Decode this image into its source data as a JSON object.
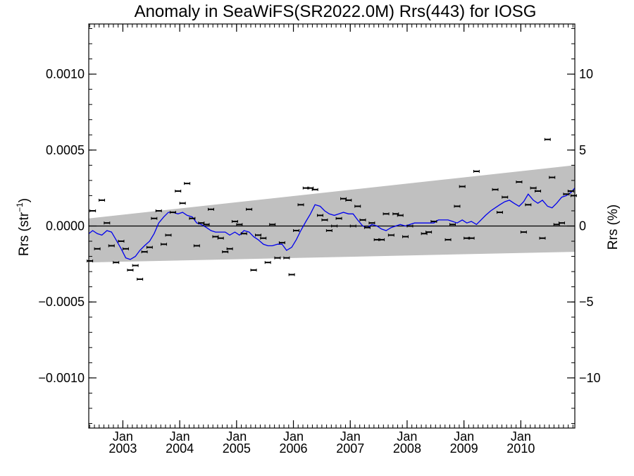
{
  "chart_data": {
    "type": "scatter",
    "title": "Anomaly in SeaWiFS(SR2022.0M) Rrs(443) for IOSG",
    "ylabel_left": {
      "base": "Rrs (str",
      "sup": "−1",
      "close": ")"
    },
    "ylabel_right": "Rrs (%)",
    "xlim": [
      2002.4,
      2010.95
    ],
    "ylim_left": [
      -0.00133,
      0.00133
    ],
    "ylim_right": [
      -13.3,
      13.3
    ],
    "grid": false,
    "left_ticks": [
      {
        "value": 0.001,
        "label": "0.0010"
      },
      {
        "value": 0.0005,
        "label": "0.0005"
      },
      {
        "value": 0.0,
        "label": "0.0000"
      },
      {
        "value": -0.0005,
        "label": "−0.0005"
      },
      {
        "value": -0.001,
        "label": "−0.0010"
      }
    ],
    "right_ticks": [
      {
        "value": 10,
        "label": "10"
      },
      {
        "value": 5,
        "label": "5"
      },
      {
        "value": 0,
        "label": "0"
      },
      {
        "value": -5,
        "label": "−5"
      },
      {
        "value": -10,
        "label": "−10"
      }
    ],
    "x_ticks": [
      {
        "value": 2003.0,
        "month": "Jan",
        "year": "2003"
      },
      {
        "value": 2004.0,
        "month": "Jan",
        "year": "2004"
      },
      {
        "value": 2005.0,
        "month": "Jan",
        "year": "2005"
      },
      {
        "value": 2006.0,
        "month": "Jan",
        "year": "2006"
      },
      {
        "value": 2007.0,
        "month": "Jan",
        "year": "2007"
      },
      {
        "value": 2008.0,
        "month": "Jan",
        "year": "2008"
      },
      {
        "value": 2009.0,
        "month": "Jan",
        "year": "2009"
      },
      {
        "value": 2010.0,
        "month": "Jan",
        "year": "2010"
      }
    ],
    "uncertainty_band": {
      "color": "#c0c0c0",
      "start": {
        "x": 2002.4,
        "lower": -0.00024,
        "upper": 5e-05
      },
      "end": {
        "x": 2010.95,
        "lower": -0.00017,
        "upper": 0.0004
      }
    },
    "series": [
      {
        "style": "points",
        "color": "#000000",
        "x": [
          2002.42,
          2002.47,
          2002.55,
          2002.63,
          2002.72,
          2002.8,
          2002.88,
          2002.97,
          2003.05,
          2003.13,
          2003.22,
          2003.3,
          2003.38,
          2003.47,
          2003.55,
          2003.63,
          2003.72,
          2003.8,
          2003.88,
          2003.97,
          2004.05,
          2004.13,
          2004.22,
          2004.3,
          2004.38,
          2004.47,
          2004.55,
          2004.63,
          2004.72,
          2004.8,
          2004.88,
          2004.97,
          2005.05,
          2005.13,
          2005.22,
          2005.3,
          2005.38,
          2005.47,
          2005.55,
          2005.63,
          2005.72,
          2005.8,
          2005.88,
          2005.97,
          2006.05,
          2006.13,
          2006.22,
          2006.3,
          2006.38,
          2006.47,
          2006.55,
          2006.63,
          2006.72,
          2006.8,
          2006.88,
          2006.97,
          2007.05,
          2007.13,
          2007.22,
          2007.3,
          2007.38,
          2007.47,
          2007.55,
          2007.63,
          2007.72,
          2007.8,
          2007.88,
          2007.97,
          2008.05,
          2008.3,
          2008.38,
          2008.47,
          2008.72,
          2008.8,
          2008.88,
          2008.97,
          2009.05,
          2009.13,
          2009.22,
          2009.55,
          2009.63,
          2009.72,
          2009.97,
          2010.05,
          2010.13,
          2010.22,
          2010.3,
          2010.38,
          2010.47,
          2010.55,
          2010.63,
          2010.72,
          2010.8,
          2010.88,
          2010.93
        ],
        "y": [
          -0.00023,
          0.0001,
          -0.00015,
          0.00017,
          2e-05,
          -0.00013,
          -0.00024,
          -0.0001,
          -0.00015,
          -0.00029,
          -0.00026,
          -0.00035,
          -0.00017,
          -0.00014,
          5e-05,
          0.0001,
          -0.00012,
          -6e-05,
          9e-05,
          0.00023,
          0.00015,
          0.00028,
          5e-05,
          -0.00013,
          2e-05,
          1e-05,
          0.00011,
          -7e-05,
          -8e-05,
          -0.00017,
          -0.00015,
          3e-05,
          1e-05,
          -5e-05,
          0.00011,
          -0.00029,
          -6e-05,
          -8e-05,
          -0.00024,
          1e-05,
          -0.00021,
          -0.00011,
          -0.00021,
          -0.00032,
          -3e-05,
          0.00014,
          0.00025,
          0.00025,
          0.00024,
          7e-05,
          4e-05,
          -3e-05,
          0.0,
          5e-05,
          0.00018,
          0.00017,
          0.0,
          0.00013,
          4e-05,
          -1e-05,
          2e-05,
          -9e-05,
          -9e-05,
          8e-05,
          -6e-05,
          8e-05,
          7e-05,
          -7e-05,
          0.0,
          -5e-05,
          -4e-05,
          3e-05,
          -9e-05,
          1e-05,
          0.00013,
          0.00026,
          -8e-05,
          -8e-05,
          0.00036,
          0.00024,
          9e-05,
          0.00019,
          0.00029,
          -4e-05,
          0.00014,
          0.00025,
          0.00023,
          -8e-05,
          0.00057,
          0.00032,
          1e-05,
          2e-05,
          0.00021,
          0.00023,
          0.0002
        ]
      },
      {
        "style": "line",
        "color": "#0000ee",
        "x": [
          2002.4,
          2002.47,
          2002.55,
          2002.63,
          2002.72,
          2002.8,
          2002.88,
          2002.97,
          2003.05,
          2003.13,
          2003.22,
          2003.3,
          2003.38,
          2003.47,
          2003.55,
          2003.63,
          2003.72,
          2003.8,
          2003.88,
          2003.97,
          2004.05,
          2004.13,
          2004.22,
          2004.3,
          2004.38,
          2004.47,
          2004.55,
          2004.63,
          2004.72,
          2004.8,
          2004.88,
          2004.97,
          2005.05,
          2005.13,
          2005.22,
          2005.3,
          2005.38,
          2005.47,
          2005.55,
          2005.63,
          2005.72,
          2005.8,
          2005.88,
          2005.97,
          2006.05,
          2006.13,
          2006.22,
          2006.3,
          2006.38,
          2006.47,
          2006.55,
          2006.63,
          2006.72,
          2006.8,
          2006.88,
          2006.97,
          2007.05,
          2007.13,
          2007.22,
          2007.3,
          2007.38,
          2007.47,
          2007.55,
          2007.63,
          2007.72,
          2007.8,
          2007.88,
          2007.97,
          2008.05,
          2008.13,
          2008.22,
          2008.3,
          2008.38,
          2008.47,
          2008.55,
          2008.63,
          2008.72,
          2008.8,
          2008.88,
          2008.97,
          2009.05,
          2009.13,
          2009.22,
          2009.3,
          2009.38,
          2009.47,
          2009.55,
          2009.63,
          2009.72,
          2009.8,
          2009.88,
          2009.97,
          2010.05,
          2010.13,
          2010.22,
          2010.3,
          2010.38,
          2010.47,
          2010.55,
          2010.63,
          2010.72,
          2010.8,
          2010.88,
          2010.95
        ],
        "y": [
          -5e-05,
          -3e-05,
          -5e-05,
          -6e-05,
          -3e-05,
          -4e-05,
          -9e-05,
          -0.00015,
          -0.00021,
          -0.00022,
          -0.0002,
          -0.00016,
          -0.00013,
          -0.0001,
          -5e-05,
          2e-05,
          6e-05,
          9e-05,
          9e-05,
          8e-05,
          9e-05,
          7e-05,
          6e-05,
          2e-05,
          1e-05,
          -1e-05,
          -3e-05,
          -4e-05,
          -4e-05,
          -4e-05,
          -6e-05,
          -4e-05,
          -6e-05,
          -3e-05,
          -4e-05,
          -7e-05,
          -9e-05,
          -0.00012,
          -0.00013,
          -0.00013,
          -0.00012,
          -0.00012,
          -0.00016,
          -0.00014,
          -9e-05,
          -3e-05,
          3e-05,
          8e-05,
          0.00014,
          0.00013,
          0.0001,
          8e-05,
          7e-05,
          8e-05,
          9e-05,
          8e-05,
          8e-05,
          4e-05,
          0.0,
          -1e-05,
          1e-05,
          0.0,
          -2e-05,
          -3e-05,
          -1e-05,
          0.0,
          1e-05,
          0.0,
          1e-05,
          2e-05,
          2e-05,
          2e-05,
          2e-05,
          2e-05,
          4e-05,
          4e-05,
          4e-05,
          3e-05,
          2e-05,
          4e-05,
          2e-05,
          3e-05,
          1e-05,
          4e-05,
          7e-05,
          0.0001,
          0.00012,
          0.00014,
          0.00016,
          0.00017,
          0.00015,
          0.00013,
          0.00016,
          0.00021,
          0.00017,
          0.00015,
          0.00017,
          0.00013,
          0.00012,
          0.00015,
          0.00019,
          0.0002,
          0.00022,
          0.00025
        ]
      }
    ]
  }
}
